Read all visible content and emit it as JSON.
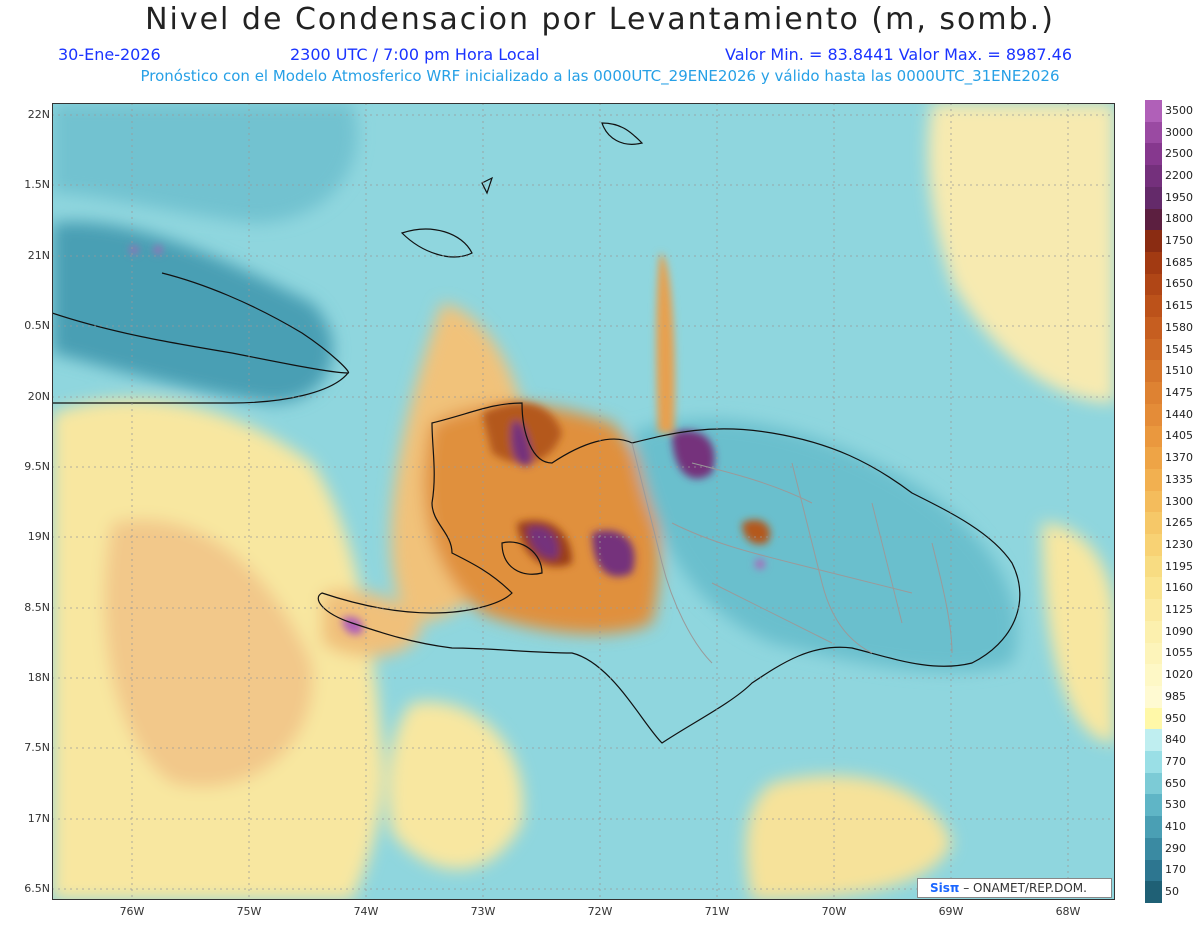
{
  "header": {
    "title": "Nivel de Condensacion por Levantamiento (m, somb.)",
    "date": "30-Ene-2026",
    "time": "2300 UTC / 7:00 pm Hora Local",
    "minmax": "Valor Min. = 83.8441   Valor Max. = 8987.46",
    "forecast": "Pronóstico con el Modelo Atmosferico WRF inicializado a las 0000UTC_29ENE2026 y válido hasta las  0000UTC_31ENE2026"
  },
  "axes": {
    "lat_labels": [
      "22N",
      "1.5N",
      "21N",
      "0.5N",
      "20N",
      "9.5N",
      "19N",
      "8.5N",
      "18N",
      "7.5N",
      "17N",
      "6.5N"
    ],
    "lon_labels": [
      "76W",
      "75W",
      "74W",
      "73W",
      "72W",
      "71W",
      "70W",
      "69W",
      "68W"
    ]
  },
  "colorbar": {
    "labels": [
      "3500",
      "3000",
      "2500",
      "2200",
      "1950",
      "1800",
      "1750",
      "1685",
      "1650",
      "1615",
      "1580",
      "1545",
      "1510",
      "1475",
      "1440",
      "1405",
      "1370",
      "1335",
      "1300",
      "1265",
      "1230",
      "1195",
      "1160",
      "1125",
      "1090",
      "1055",
      "1020",
      "985",
      "950",
      "840",
      "770",
      "650",
      "530",
      "410",
      "290",
      "170",
      "50"
    ],
    "colors": [
      "#b060b8",
      "#9a4aa2",
      "#86388e",
      "#74307c",
      "#642a6a",
      "#5c1f40",
      "#8a2c12",
      "#a23a12",
      "#b04616",
      "#bc521a",
      "#c65e20",
      "#ce6a26",
      "#d6762c",
      "#de8232",
      "#e48c38",
      "#ea983e",
      "#eea446",
      "#f2b050",
      "#f4bc5c",
      "#f6c868",
      "#f8d274",
      "#f8dc82",
      "#fae490",
      "#fbeaa0",
      "#fcf0ae",
      "#fdf4ba",
      "#fef8c6",
      "#fffad2",
      "#fff8a8",
      "#bfeef0",
      "#9adfe6",
      "#7ccbd6",
      "#5fb5c6",
      "#4a9fb4",
      "#3a8aa2",
      "#2d7690",
      "#1f6075"
    ]
  },
  "credit": {
    "sis": "Sisπ",
    "text": "– ONAMET/REP.DOM."
  }
}
